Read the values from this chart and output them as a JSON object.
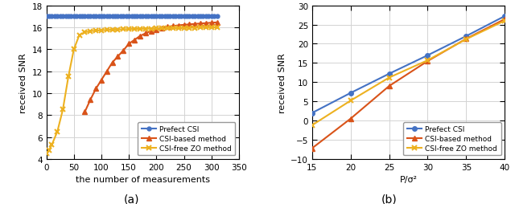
{
  "plot_a": {
    "title": "(a)",
    "xlabel": "the number of measurements",
    "ylabel": "received SNR",
    "xlim": [
      0,
      350
    ],
    "ylim": [
      4,
      18
    ],
    "yticks": [
      4,
      6,
      8,
      10,
      12,
      14,
      16,
      18
    ],
    "xticks": [
      0,
      50,
      100,
      150,
      200,
      250,
      300,
      350
    ],
    "perfect_csi": {
      "x": [
        0,
        5,
        10,
        15,
        20,
        25,
        30,
        35,
        40,
        45,
        50,
        55,
        60,
        65,
        70,
        75,
        80,
        85,
        90,
        95,
        100,
        105,
        110,
        115,
        120,
        125,
        130,
        135,
        140,
        145,
        150,
        155,
        160,
        165,
        170,
        175,
        180,
        185,
        190,
        195,
        200,
        205,
        210,
        215,
        220,
        225,
        230,
        235,
        240,
        245,
        250,
        255,
        260,
        265,
        270,
        275,
        280,
        285,
        290,
        295,
        300,
        305,
        310
      ],
      "y": [
        17.0,
        17.0,
        17.0,
        17.0,
        17.0,
        17.0,
        17.0,
        17.0,
        17.0,
        17.0,
        17.0,
        17.0,
        17.0,
        17.0,
        17.0,
        17.0,
        17.0,
        17.0,
        17.0,
        17.0,
        17.0,
        17.0,
        17.0,
        17.0,
        17.0,
        17.0,
        17.0,
        17.0,
        17.0,
        17.0,
        17.0,
        17.0,
        17.0,
        17.0,
        17.0,
        17.0,
        17.0,
        17.0,
        17.0,
        17.0,
        17.0,
        17.0,
        17.0,
        17.0,
        17.0,
        17.0,
        17.0,
        17.0,
        17.0,
        17.0,
        17.0,
        17.0,
        17.0,
        17.0,
        17.0,
        17.0,
        17.0,
        17.0,
        17.0,
        17.0,
        17.0,
        17.0,
        17.0
      ],
      "color": "#4472c4",
      "marker": "o",
      "markersize": 3.5,
      "linewidth": 1.5,
      "label": "Prefect CSI"
    },
    "csi_based": {
      "x": [
        70,
        80,
        90,
        100,
        110,
        120,
        130,
        140,
        150,
        160,
        170,
        180,
        190,
        200,
        210,
        220,
        230,
        240,
        250,
        260,
        270,
        280,
        290,
        300,
        310
      ],
      "y": [
        8.3,
        9.4,
        10.4,
        11.2,
        12.0,
        12.8,
        13.35,
        13.9,
        14.5,
        14.85,
        15.2,
        15.45,
        15.65,
        15.8,
        15.95,
        16.05,
        16.12,
        16.18,
        16.23,
        16.27,
        16.31,
        16.35,
        16.38,
        16.42,
        16.45
      ],
      "color": "#d95319",
      "marker": "^",
      "markersize": 5,
      "linewidth": 1.5,
      "label": "CSI-based method"
    },
    "csi_free": {
      "x": [
        1,
        5,
        10,
        20,
        30,
        40,
        50,
        60,
        70,
        80,
        90,
        100,
        110,
        120,
        130,
        140,
        150,
        160,
        170,
        180,
        190,
        200,
        210,
        220,
        230,
        240,
        250,
        260,
        270,
        280,
        290,
        300,
        310
      ],
      "y": [
        4.5,
        4.8,
        5.3,
        6.5,
        8.5,
        11.5,
        14.0,
        15.3,
        15.55,
        15.65,
        15.7,
        15.73,
        15.76,
        15.78,
        15.8,
        15.82,
        15.84,
        15.85,
        15.86,
        15.87,
        15.88,
        15.89,
        15.9,
        15.91,
        15.92,
        15.93,
        15.94,
        15.95,
        15.96,
        15.97,
        15.98,
        15.99,
        16.0
      ],
      "color": "#edb120",
      "marker": "x",
      "markersize": 5,
      "linewidth": 1.5,
      "label": "CSI-free ZO method"
    }
  },
  "plot_b": {
    "title": "(b)",
    "xlabel": "P/σ²",
    "ylabel": "received SNR",
    "xlim": [
      15,
      40
    ],
    "ylim": [
      -10,
      30
    ],
    "yticks": [
      -10,
      -5,
      0,
      5,
      10,
      15,
      20,
      25,
      30
    ],
    "xticks": [
      15,
      20,
      25,
      30,
      35,
      40
    ],
    "perfect_csi": {
      "x": [
        15,
        20,
        25,
        30,
        35,
        40
      ],
      "y": [
        2.0,
        7.2,
        12.2,
        17.0,
        22.0,
        27.2
      ],
      "color": "#4472c4",
      "marker": "o",
      "markersize": 4,
      "linewidth": 1.5,
      "label": "Prefect CSI"
    },
    "csi_based": {
      "x": [
        15,
        20,
        25,
        30,
        35,
        40
      ],
      "y": [
        -7.2,
        0.5,
        9.0,
        15.5,
        21.3,
        26.4
      ],
      "color": "#d95319",
      "marker": "^",
      "markersize": 5,
      "linewidth": 1.5,
      "label": "CSI-based method"
    },
    "csi_free": {
      "x": [
        15,
        20,
        25,
        30,
        35,
        40
      ],
      "y": [
        -1.2,
        5.2,
        11.2,
        15.7,
        21.2,
        26.0
      ],
      "color": "#edb120",
      "marker": "x",
      "markersize": 5,
      "linewidth": 1.5,
      "label": "CSI-free ZO method"
    }
  },
  "background_color": "#ffffff",
  "grid_color": "#d3d3d3",
  "caption_a": "(a)",
  "caption_b": "(b)"
}
